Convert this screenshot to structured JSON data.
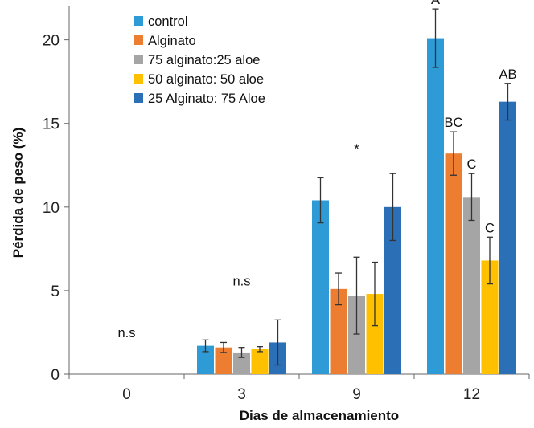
{
  "chart_data": {
    "type": "bar",
    "xlabel": "Dias de almacenamiento",
    "ylabel": "Pérdida de peso (%)",
    "ylim": [
      0,
      22
    ],
    "yticks": [
      0,
      5,
      10,
      15,
      20
    ],
    "categories": [
      "0",
      "3",
      "9",
      "12"
    ],
    "legend_position": "top-left",
    "series": [
      {
        "name": "control",
        "color": "#2E9BD6",
        "values": [
          0,
          1.7,
          10.4,
          20.1
        ],
        "errors": [
          0,
          0.35,
          1.35,
          1.75
        ]
      },
      {
        "name": "Alginato",
        "color": "#ED7D31",
        "values": [
          0,
          1.6,
          5.1,
          13.2
        ],
        "errors": [
          0,
          0.3,
          0.95,
          1.3
        ]
      },
      {
        "name": "75 alginato:25 aloe",
        "color": "#A5A5A5",
        "values": [
          0,
          1.3,
          4.7,
          10.6
        ],
        "errors": [
          0,
          0.3,
          2.3,
          1.4
        ]
      },
      {
        "name": "50 alginato: 50 aloe",
        "color": "#FFC000",
        "values": [
          0,
          1.5,
          4.8,
          6.8
        ],
        "errors": [
          0,
          0.15,
          1.9,
          1.4
        ]
      },
      {
        "name": "25 Alginato: 75 Aloe",
        "color": "#2B6FB7",
        "values": [
          0,
          1.9,
          10.0,
          16.3
        ],
        "errors": [
          0,
          1.35,
          2.0,
          1.1
        ]
      }
    ],
    "group_annotations": [
      {
        "category": "0",
        "text": "n.s"
      },
      {
        "category": "3",
        "text": "n.s"
      },
      {
        "category": "9",
        "text": "*"
      }
    ],
    "bar_annotations": [
      {
        "category": "12",
        "series": "control",
        "text": "A"
      },
      {
        "category": "12",
        "series": "Alginato",
        "text": "BC"
      },
      {
        "category": "12",
        "series": "75 alginato:25 aloe",
        "text": "C"
      },
      {
        "category": "12",
        "series": "50 alginato: 50 aloe",
        "text": "C"
      },
      {
        "category": "12",
        "series": "25 Alginato: 75 Aloe",
        "text": "AB"
      }
    ]
  }
}
